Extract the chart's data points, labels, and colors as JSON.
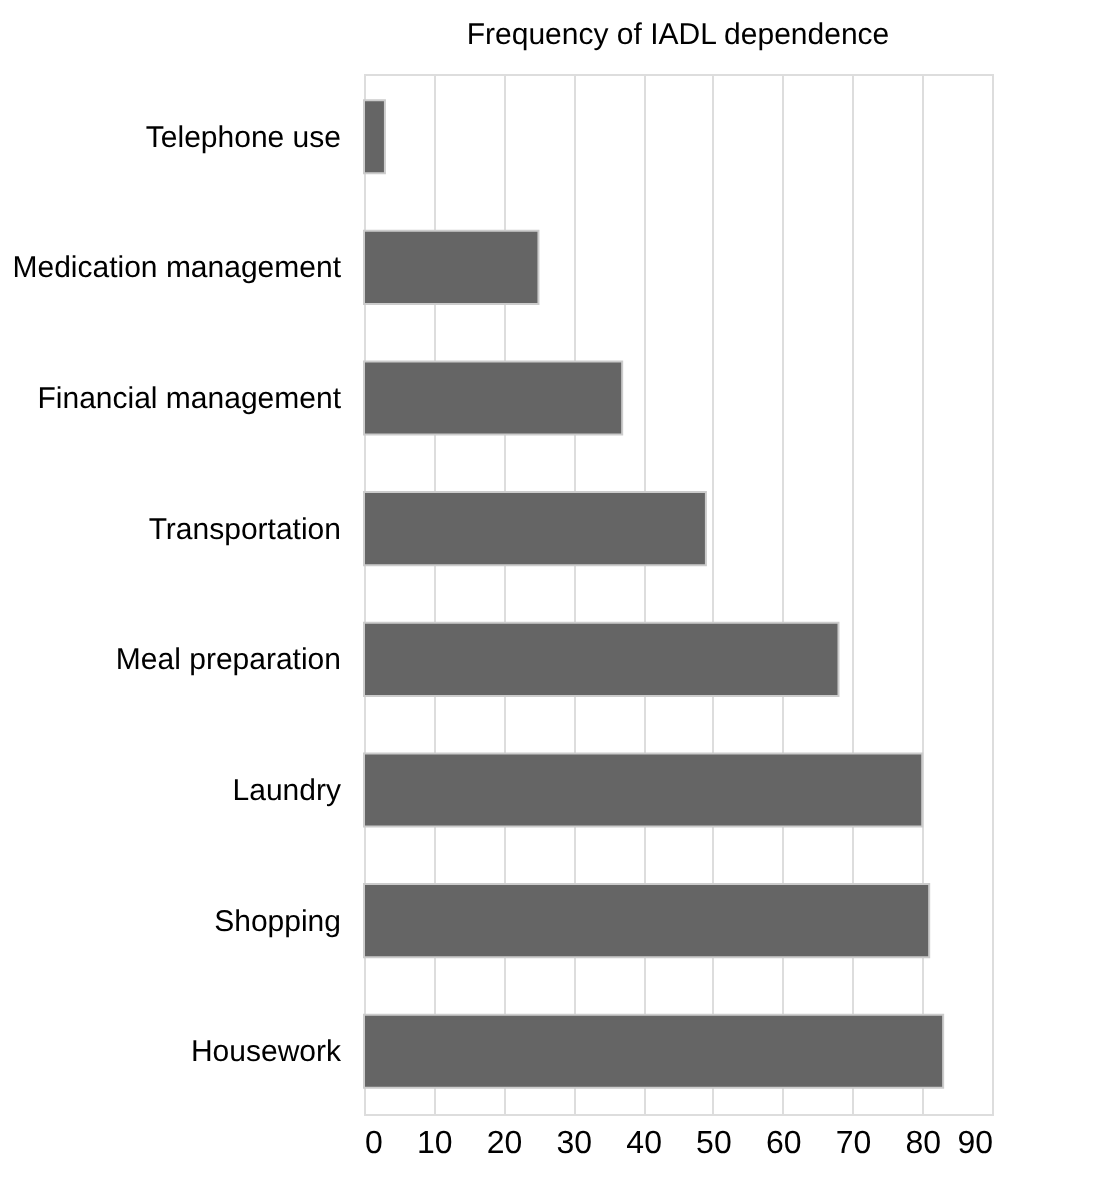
{
  "chart_data": {
    "type": "bar",
    "orientation": "horizontal",
    "title": "Frequency of IADL dependence",
    "categories": [
      "Telephone use",
      "Medication management",
      "Financial management",
      "Transportation",
      "Meal preparation",
      "Laundry",
      "Shopping",
      "Housework"
    ],
    "values": [
      3,
      25,
      37,
      49,
      68,
      80,
      81,
      83
    ],
    "color": "#656565",
    "xlim": [
      0,
      90
    ],
    "xticks": [
      0,
      10,
      20,
      30,
      40,
      50,
      60,
      70,
      80,
      90
    ],
    "grid": "x"
  }
}
